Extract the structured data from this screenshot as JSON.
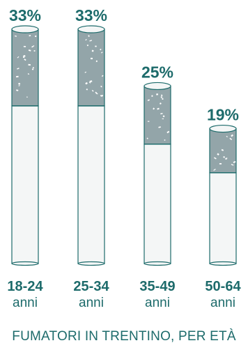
{
  "colors": {
    "text": "#1d6b6b",
    "filter": "#93a5a9",
    "paper": "#f4f6f6",
    "outline": "#1d6b6b",
    "flecks": "#ffffff"
  },
  "chart_data": {
    "type": "bar",
    "style": "cigarette",
    "categories": [
      "18-24",
      "25-34",
      "35-49",
      "50-64"
    ],
    "unit_label": "anni",
    "values": [
      33,
      33,
      25,
      19
    ],
    "value_labels": [
      "33%",
      "33%",
      "25%",
      "19%"
    ],
    "caption": "FUMATORI IN TRENTINO, PER ETÀ",
    "ylim": [
      0,
      33
    ]
  }
}
